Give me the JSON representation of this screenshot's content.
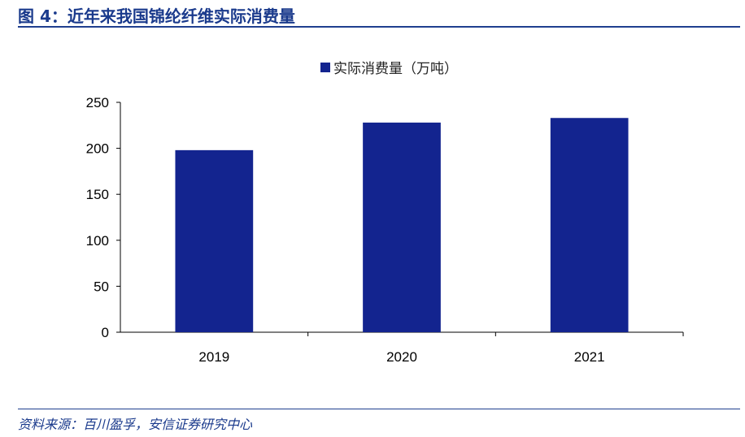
{
  "figure": {
    "title": "图 4：近年来我国锦纶纤维实际消费量",
    "source": "资料来源：百川盈孚，安信证券研究中心"
  },
  "colors": {
    "accent": "#1a3a8c",
    "bar": "#13248f"
  },
  "chart_data": {
    "type": "bar",
    "categories": [
      "2019",
      "2020",
      "2021"
    ],
    "series": [
      {
        "name": "实际消费量（万吨）",
        "values": [
          198,
          228,
          233
        ]
      }
    ],
    "ylim": [
      0,
      250
    ],
    "yticks": [
      0,
      50,
      100,
      150,
      200,
      250
    ],
    "xlabel": "",
    "ylabel": "",
    "grid": false,
    "legend": "top-center"
  }
}
